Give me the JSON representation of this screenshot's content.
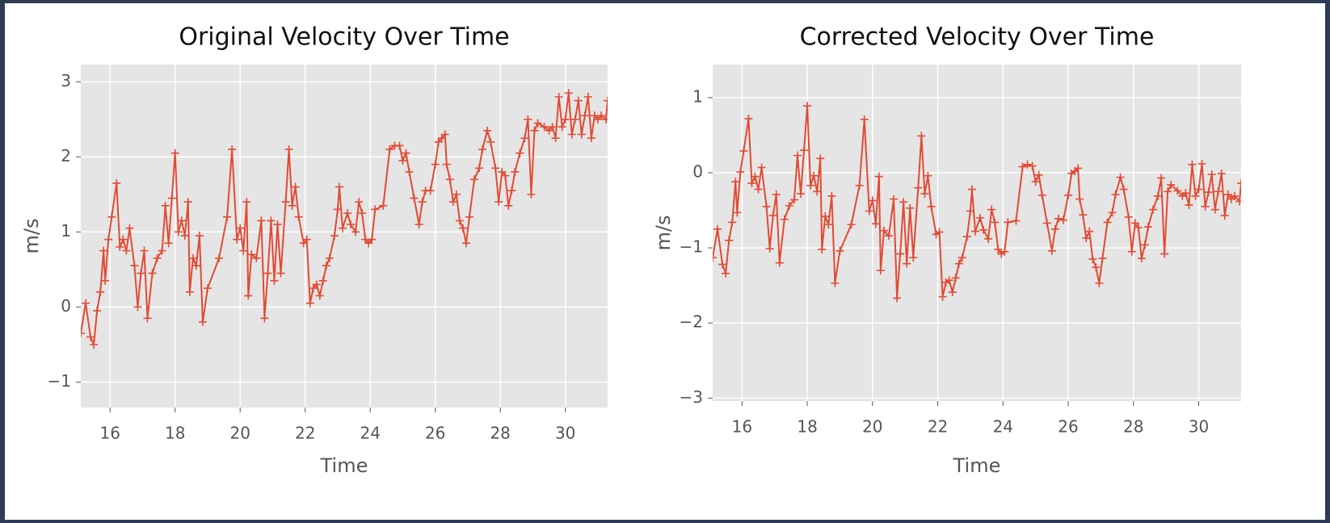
{
  "chart_data": [
    {
      "type": "line",
      "title": "Original Velocity Over Time",
      "xlabel": "Time",
      "ylabel": "m/s",
      "xlim": [
        15.1,
        31.3
      ],
      "ylim": [
        -1.34,
        3.23
      ],
      "grid": true,
      "marker": "+",
      "color": "#e24a33",
      "xticks": [
        16,
        18,
        20,
        22,
        24,
        26,
        28,
        30
      ],
      "yticks": [
        {
          "value": -1,
          "label": "−1"
        },
        0,
        1,
        2,
        3
      ],
      "x": [
        15.1,
        15.25,
        15.4,
        15.5,
        15.6,
        15.7,
        15.8,
        15.85,
        15.95,
        16.05,
        16.2,
        16.3,
        16.4,
        16.5,
        16.6,
        16.75,
        16.85,
        16.95,
        17.05,
        17.15,
        17.3,
        17.45,
        17.6,
        17.7,
        17.8,
        17.9,
        18.0,
        18.1,
        18.2,
        18.3,
        18.4,
        18.45,
        18.55,
        18.65,
        18.75,
        18.85,
        19.0,
        19.35,
        19.6,
        19.75,
        19.9,
        20.0,
        20.1,
        20.2,
        20.25,
        20.35,
        20.5,
        20.65,
        20.75,
        20.85,
        20.95,
        21.05,
        21.15,
        21.25,
        21.4,
        21.5,
        21.6,
        21.7,
        21.8,
        21.95,
        22.05,
        22.15,
        22.25,
        22.35,
        22.45,
        22.55,
        22.65,
        22.75,
        22.9,
        23.0,
        23.05,
        23.15,
        23.3,
        23.4,
        23.55,
        23.65,
        23.75,
        23.85,
        23.95,
        24.05,
        24.15,
        24.4,
        24.6,
        24.75,
        24.9,
        25.0,
        25.1,
        25.2,
        25.35,
        25.5,
        25.6,
        25.7,
        25.85,
        26.0,
        26.1,
        26.2,
        26.3,
        26.35,
        26.45,
        26.55,
        26.65,
        26.75,
        26.85,
        26.95,
        27.05,
        27.2,
        27.35,
        27.45,
        27.6,
        27.7,
        27.85,
        27.95,
        28.05,
        28.15,
        28.25,
        28.35,
        28.45,
        28.6,
        28.75,
        28.85,
        28.95,
        29.05,
        29.15,
        29.35,
        29.5,
        29.6,
        29.7,
        29.8,
        29.9,
        30.0,
        30.1,
        30.2,
        30.3,
        30.4,
        30.5,
        30.6,
        30.7,
        30.8,
        30.9,
        31.0,
        31.1,
        31.25,
        31.3
      ],
      "series": [
        {
          "color": "#e24a33",
          "values": [
            -0.35,
            0.05,
            -0.4,
            -0.5,
            -0.05,
            0.2,
            0.75,
            0.35,
            0.9,
            1.2,
            1.65,
            0.8,
            0.9,
            0.75,
            1.05,
            0.55,
            0.0,
            0.45,
            0.75,
            -0.15,
            0.45,
            0.65,
            0.75,
            1.35,
            0.85,
            1.45,
            2.05,
            1.0,
            1.15,
            0.95,
            1.4,
            0.2,
            0.65,
            0.55,
            0.95,
            -0.2,
            0.25,
            0.65,
            1.2,
            2.1,
            0.9,
            1.05,
            0.75,
            1.4,
            0.15,
            0.7,
            0.65,
            1.15,
            -0.15,
            0.45,
            1.15,
            0.35,
            1.1,
            0.45,
            1.4,
            2.1,
            1.35,
            1.6,
            1.2,
            0.85,
            0.9,
            0.05,
            0.25,
            0.3,
            0.15,
            0.35,
            0.55,
            0.65,
            0.95,
            1.3,
            1.6,
            1.05,
            1.25,
            1.1,
            1.0,
            1.4,
            1.25,
            0.9,
            0.85,
            0.9,
            1.3,
            1.35,
            2.1,
            2.15,
            2.15,
            1.95,
            2.05,
            1.8,
            1.45,
            1.1,
            1.4,
            1.55,
            1.55,
            1.9,
            2.2,
            2.25,
            2.3,
            1.9,
            1.7,
            1.4,
            1.5,
            1.15,
            1.05,
            0.85,
            1.2,
            1.7,
            1.85,
            2.1,
            2.35,
            2.2,
            1.85,
            1.4,
            1.8,
            1.75,
            1.35,
            1.55,
            1.8,
            2.05,
            2.25,
            2.5,
            1.5,
            2.35,
            2.45,
            2.4,
            2.35,
            2.4,
            2.25,
            2.8,
            2.4,
            2.5,
            2.85,
            2.3,
            2.5,
            2.75,
            2.3,
            2.55,
            2.8,
            2.25,
            2.55,
            2.5,
            2.55,
            2.5,
            2.75
          ]
        }
      ]
    },
    {
      "type": "line",
      "title": "Corrected Velocity Over Time",
      "xlabel": "Time",
      "ylabel": "m/s",
      "xlim": [
        15.1,
        31.3
      ],
      "ylim": [
        -3.04,
        1.44
      ],
      "grid": true,
      "marker": "+",
      "color": "#e24a33",
      "xticks": [
        16,
        18,
        20,
        22,
        24,
        26,
        28,
        30
      ],
      "yticks": [
        {
          "value": -3,
          "label": "−3"
        },
        {
          "value": -2,
          "label": "−2"
        },
        {
          "value": -1,
          "label": "−1"
        },
        0,
        1
      ],
      "x": [
        15.1,
        15.25,
        15.4,
        15.5,
        15.6,
        15.7,
        15.8,
        15.85,
        15.95,
        16.05,
        16.2,
        16.3,
        16.4,
        16.5,
        16.6,
        16.75,
        16.85,
        16.95,
        17.05,
        17.15,
        17.3,
        17.45,
        17.6,
        17.7,
        17.8,
        17.9,
        18.0,
        18.1,
        18.2,
        18.3,
        18.4,
        18.45,
        18.55,
        18.65,
        18.75,
        18.85,
        19.0,
        19.35,
        19.6,
        19.75,
        19.9,
        20.0,
        20.1,
        20.2,
        20.25,
        20.35,
        20.5,
        20.65,
        20.75,
        20.85,
        20.95,
        21.05,
        21.15,
        21.25,
        21.4,
        21.5,
        21.6,
        21.7,
        21.8,
        21.95,
        22.05,
        22.15,
        22.25,
        22.35,
        22.45,
        22.55,
        22.65,
        22.75,
        22.9,
        23.0,
        23.05,
        23.15,
        23.3,
        23.4,
        23.55,
        23.65,
        23.75,
        23.85,
        23.95,
        24.05,
        24.15,
        24.4,
        24.6,
        24.75,
        24.9,
        25.0,
        25.1,
        25.2,
        25.35,
        25.5,
        25.6,
        25.7,
        25.85,
        26.0,
        26.1,
        26.2,
        26.3,
        26.35,
        26.45,
        26.55,
        26.65,
        26.75,
        26.85,
        26.95,
        27.05,
        27.2,
        27.35,
        27.45,
        27.6,
        27.7,
        27.85,
        27.95,
        28.05,
        28.15,
        28.25,
        28.35,
        28.45,
        28.6,
        28.75,
        28.85,
        28.95,
        29.05,
        29.15,
        29.35,
        29.5,
        29.6,
        29.7,
        29.8,
        29.9,
        30.0,
        30.1,
        30.2,
        30.3,
        30.4,
        30.5,
        30.6,
        30.7,
        30.8,
        30.9,
        31.0,
        31.1,
        31.25,
        31.3
      ],
      "series": [
        {
          "color": "#e24a33",
          "values": [
            -1.13,
            -0.75,
            -1.22,
            -1.34,
            -0.9,
            -0.66,
            -0.12,
            -0.53,
            0.01,
            0.29,
            0.72,
            -0.14,
            -0.05,
            -0.22,
            0.07,
            -0.45,
            -1.01,
            -0.57,
            -0.29,
            -1.2,
            -0.62,
            -0.44,
            -0.36,
            0.23,
            -0.28,
            0.3,
            0.89,
            -0.17,
            -0.04,
            -0.25,
            0.19,
            -1.02,
            -0.58,
            -0.69,
            -0.31,
            -1.47,
            -1.04,
            -0.69,
            -0.17,
            0.71,
            -0.51,
            -0.37,
            -0.68,
            -0.05,
            -1.3,
            -0.77,
            -0.84,
            -0.35,
            -1.67,
            -1.08,
            -0.39,
            -1.21,
            -0.47,
            -1.13,
            -0.2,
            0.49,
            -0.28,
            -0.04,
            -0.45,
            -0.82,
            -0.79,
            -1.65,
            -1.46,
            -1.43,
            -1.59,
            -1.4,
            -1.21,
            -1.13,
            -0.85,
            -0.51,
            -0.22,
            -0.78,
            -0.6,
            -0.76,
            -0.88,
            -0.49,
            -0.66,
            -1.02,
            -1.08,
            -1.05,
            -0.66,
            -0.64,
            0.08,
            0.11,
            0.09,
            -0.12,
            -0.03,
            -0.3,
            -0.67,
            -1.04,
            -0.75,
            -0.61,
            -0.63,
            -0.3,
            -0.01,
            0.02,
            0.06,
            -0.35,
            -0.56,
            -0.87,
            -0.78,
            -1.15,
            -1.26,
            -1.47,
            -1.14,
            -0.66,
            -0.53,
            -0.29,
            -0.06,
            -0.22,
            -0.59,
            -1.05,
            -0.67,
            -0.73,
            -1.14,
            -0.96,
            -0.72,
            -0.49,
            -0.31,
            -0.07,
            -1.08,
            -0.25,
            -0.16,
            -0.24,
            -0.31,
            -0.27,
            -0.43,
            0.11,
            -0.31,
            -0.22,
            0.12,
            -0.45,
            -0.26,
            -0.02,
            -0.49,
            -0.25,
            -0.01,
            -0.57,
            -0.29,
            -0.35,
            -0.31,
            -0.38,
            -0.14
          ]
        }
      ]
    }
  ]
}
